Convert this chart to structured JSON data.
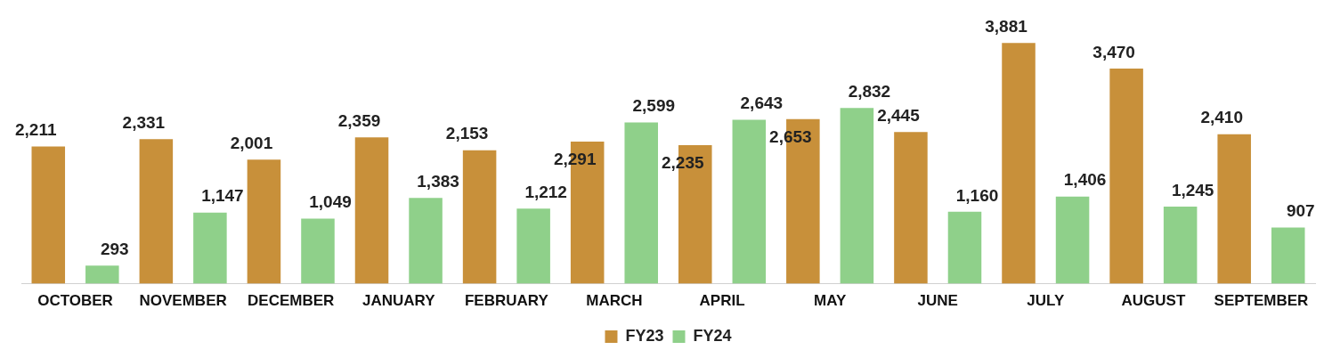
{
  "chart_data": {
    "type": "bar",
    "categories": [
      "OCTOBER",
      "NOVEMBER",
      "DECEMBER",
      "JANUARY",
      "FEBRUARY",
      "MARCH",
      "APRIL",
      "MAY",
      "JUNE",
      "JULY",
      "AUGUST",
      "SEPTEMBER"
    ],
    "series": [
      {
        "name": "FY23",
        "color": "#c8903a",
        "values": [
          2211,
          2331,
          2001,
          2359,
          2153,
          2291,
          2235,
          2653,
          2445,
          3881,
          3470,
          2410
        ],
        "value_labels": [
          "2,211",
          "2,331",
          "2,001",
          "2,359",
          "2,153",
          "2,291",
          "2,235",
          "2,653",
          "2,445",
          "3,881",
          "3,470",
          "2,410"
        ]
      },
      {
        "name": "FY24",
        "color": "#8fd08a",
        "values": [
          293,
          1147,
          1049,
          1383,
          1212,
          2599,
          2643,
          2832,
          1160,
          1406,
          1245,
          907
        ],
        "value_labels": [
          "293",
          "1,147",
          "1,049",
          "1,383",
          "1,212",
          "2,599",
          "2,643",
          "2,832",
          "1,160",
          "1,406",
          "1,245",
          "907"
        ]
      }
    ],
    "legend": "bottom",
    "grid": false
  }
}
